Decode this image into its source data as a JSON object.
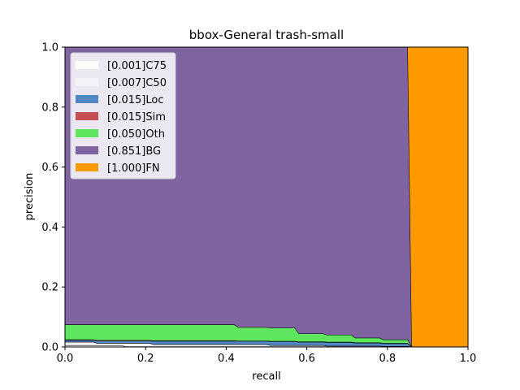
{
  "chart_data": {
    "type": "area",
    "title": "bbox-General trash-small",
    "xlabel": "recall",
    "ylabel": "precision",
    "xlim": [
      0.0,
      1.0
    ],
    "ylim": [
      0.0,
      1.0
    ],
    "xticks": [
      "0.0",
      "0.2",
      "0.4",
      "0.6",
      "0.8",
      "1.0"
    ],
    "yticks": [
      "0.0",
      "0.2",
      "0.4",
      "0.6",
      "0.8",
      "1.0"
    ],
    "grid": false,
    "legend_position": "top-left",
    "x": [
      0.0,
      0.07,
      0.08,
      0.14,
      0.15,
      0.21,
      0.22,
      0.42,
      0.43,
      0.5,
      0.51,
      0.57,
      0.58,
      0.64,
      0.65,
      0.71,
      0.72,
      0.78,
      0.79,
      0.85,
      0.86,
      1.0
    ],
    "series": [
      {
        "name": "[0.001]C75",
        "color": "#ffffff",
        "values": [
          0.005,
          0.005,
          0.005,
          0.005,
          0.001,
          0.001,
          0.001,
          0.001,
          0.001,
          0.001,
          0.001,
          0.001,
          0.001,
          0.001,
          0.001,
          0.001,
          0.001,
          0.001,
          0.001,
          0.001,
          0.0,
          0.0
        ]
      },
      {
        "name": "[0.007]C50",
        "color": "#f5f3fa",
        "values": [
          0.016,
          0.016,
          0.012,
          0.012,
          0.012,
          0.012,
          0.008,
          0.008,
          0.008,
          0.008,
          0.005,
          0.005,
          0.005,
          0.005,
          0.003,
          0.003,
          0.003,
          0.003,
          0.002,
          0.002,
          0.0,
          0.0
        ]
      },
      {
        "name": "[0.015]Loc",
        "color": "#4f86c4",
        "values": [
          0.022,
          0.022,
          0.02,
          0.02,
          0.02,
          0.02,
          0.019,
          0.019,
          0.019,
          0.019,
          0.018,
          0.018,
          0.016,
          0.016,
          0.015,
          0.015,
          0.013,
          0.013,
          0.011,
          0.011,
          0.0,
          0.0
        ]
      },
      {
        "name": "[0.015]Sim",
        "color": "#c44e52",
        "values": [
          0.024,
          0.024,
          0.022,
          0.022,
          0.022,
          0.022,
          0.021,
          0.021,
          0.02,
          0.02,
          0.019,
          0.019,
          0.017,
          0.017,
          0.016,
          0.016,
          0.014,
          0.014,
          0.012,
          0.012,
          0.0,
          0.0
        ]
      },
      {
        "name": "[0.050]Oth",
        "color": "#5ee65e",
        "values": [
          0.074,
          0.074,
          0.074,
          0.074,
          0.074,
          0.074,
          0.074,
          0.074,
          0.065,
          0.065,
          0.063,
          0.063,
          0.044,
          0.044,
          0.04,
          0.04,
          0.03,
          0.03,
          0.024,
          0.024,
          0.0,
          0.0
        ]
      },
      {
        "name": "[0.851]BG",
        "color": "#8064a2",
        "values": [
          1.0,
          1.0,
          1.0,
          1.0,
          1.0,
          1.0,
          1.0,
          1.0,
          1.0,
          1.0,
          1.0,
          1.0,
          1.0,
          1.0,
          1.0,
          1.0,
          1.0,
          1.0,
          1.0,
          1.0,
          0.0,
          0.0
        ]
      },
      {
        "name": "[1.000]FN",
        "color": "#ff9900",
        "values": [
          1.0,
          1.0,
          1.0,
          1.0,
          1.0,
          1.0,
          1.0,
          1.0,
          1.0,
          1.0,
          1.0,
          1.0,
          1.0,
          1.0,
          1.0,
          1.0,
          1.0,
          1.0,
          1.0,
          1.0,
          1.0,
          1.0
        ]
      }
    ]
  }
}
